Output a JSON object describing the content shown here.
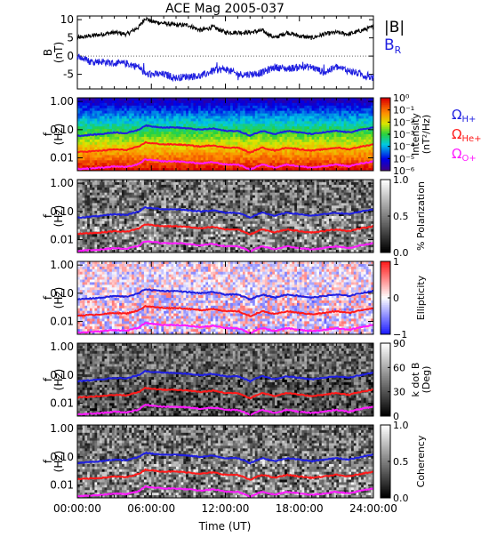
{
  "title": "ACE Mag 2005-037",
  "colors": {
    "B": "#000000",
    "BR": "#1f1fe0",
    "H": "#1f1fe0",
    "He": "#ff1a1a",
    "O": "#ff1aff"
  },
  "chart_data": [
    {
      "type": "line",
      "title": "ACE Mag 2005-037",
      "ylabel": "B (nT)",
      "ylim": [
        -9,
        11
      ],
      "yticks": [
        "10",
        "5",
        "0",
        "-5"
      ],
      "legend": [
        "|B|",
        "BR"
      ],
      "series": [
        {
          "name": "|B|",
          "x_hours": [
            0,
            1,
            2,
            3,
            4,
            5,
            5.5,
            6,
            7,
            8,
            9,
            10,
            11,
            12,
            13,
            14,
            15,
            16,
            17,
            18,
            19,
            20,
            21,
            22,
            23,
            24
          ],
          "values": [
            5,
            5.5,
            6,
            6.5,
            6,
            8,
            10.5,
            9.5,
            9,
            8.5,
            8.5,
            7,
            8,
            6.5,
            6.5,
            6.5,
            7,
            5,
            6.5,
            5.5,
            5,
            6,
            6.5,
            6,
            7,
            8
          ]
        },
        {
          "name": "BR",
          "x_hours": [
            0,
            1,
            2,
            3,
            4,
            5,
            5.5,
            6,
            7,
            8,
            9,
            10,
            11,
            12,
            13,
            14,
            15,
            16,
            17,
            18,
            19,
            20,
            21,
            22,
            23,
            24
          ],
          "values": [
            0,
            -1.5,
            -1.5,
            -2,
            -2,
            -3,
            -5,
            -5,
            -5,
            -6,
            -5.5,
            -5.5,
            -4,
            -3.5,
            -5,
            -5,
            -4.5,
            -3,
            -3.5,
            -3,
            -3,
            -4.5,
            -3,
            -4,
            -5,
            -6
          ]
        }
      ]
    },
    {
      "type": "heatmap",
      "ylabel": "f (Hz)",
      "yticks": [
        "1.00",
        "0.10",
        "0.01"
      ],
      "colorbar_label": "Intensity (nT²/Hz)",
      "colorbar_ticks": [
        "10⁰",
        "10⁻¹",
        "10⁻²",
        "10⁻³",
        "10⁻⁴",
        "10⁻⁵",
        "10⁻⁶"
      ],
      "legend": [
        "ΩH+",
        "ΩHe+",
        "ΩO+"
      ]
    },
    {
      "type": "heatmap",
      "ylabel": "f (Hz)",
      "yticks": [
        "1.00",
        "0.10",
        "0.01"
      ],
      "colorbar_label": "% Polarization",
      "colorbar_ticks": [
        "1.0",
        "0.5",
        "0.0"
      ]
    },
    {
      "type": "heatmap",
      "ylabel": "f (Hz)",
      "yticks": [
        "1.00",
        "0.10",
        "0.01"
      ],
      "colorbar_label": "Ellipticity",
      "colorbar_ticks": [
        "1",
        "0",
        "−1"
      ]
    },
    {
      "type": "heatmap",
      "ylabel": "f (Hz)",
      "yticks": [
        "1.00",
        "0.10",
        "0.01"
      ],
      "colorbar_label": "k dot B (Deg)",
      "colorbar_ticks": [
        "90",
        "60",
        "30",
        "0"
      ]
    },
    {
      "type": "heatmap",
      "ylabel": "f (Hz)",
      "yticks": [
        "1.00",
        "0.10",
        "0.01"
      ],
      "colorbar_label": "Coherency",
      "colorbar_ticks": [
        "1.0",
        "0.5",
        "0.0"
      ]
    }
  ],
  "gyrofrequency_curves": {
    "x_hours": [
      0,
      1,
      2,
      3,
      4,
      5,
      5.5,
      6,
      7,
      8,
      9,
      10,
      11,
      12,
      13,
      14,
      15,
      16,
      17,
      18,
      19,
      20,
      21,
      22,
      23,
      24
    ],
    "H_plus_hz": [
      0.06,
      0.065,
      0.07,
      0.08,
      0.075,
      0.1,
      0.14,
      0.13,
      0.12,
      0.12,
      0.11,
      0.1,
      0.11,
      0.09,
      0.09,
      0.06,
      0.09,
      0.07,
      0.09,
      0.08,
      0.07,
      0.08,
      0.09,
      0.08,
      0.1,
      0.12
    ],
    "He_plus_hz": [
      0.016,
      0.017,
      0.018,
      0.02,
      0.019,
      0.025,
      0.035,
      0.033,
      0.03,
      0.03,
      0.028,
      0.025,
      0.028,
      0.023,
      0.023,
      0.015,
      0.023,
      0.018,
      0.023,
      0.02,
      0.018,
      0.02,
      0.023,
      0.02,
      0.025,
      0.03
    ],
    "O_plus_hz": [
      0.004,
      0.0042,
      0.0045,
      0.005,
      0.0047,
      0.006,
      0.0088,
      0.0083,
      0.0075,
      0.0075,
      0.007,
      0.0063,
      0.007,
      0.0058,
      0.0058,
      0.0038,
      0.0058,
      0.0045,
      0.0058,
      0.005,
      0.0045,
      0.005,
      0.0058,
      0.005,
      0.0063,
      0.0075
    ]
  },
  "xaxis": {
    "label": "Time (UT)",
    "ticks": [
      "00:00:00",
      "06:00:00",
      "12:00:00",
      "18:00:00",
      "24:00:00"
    ]
  }
}
